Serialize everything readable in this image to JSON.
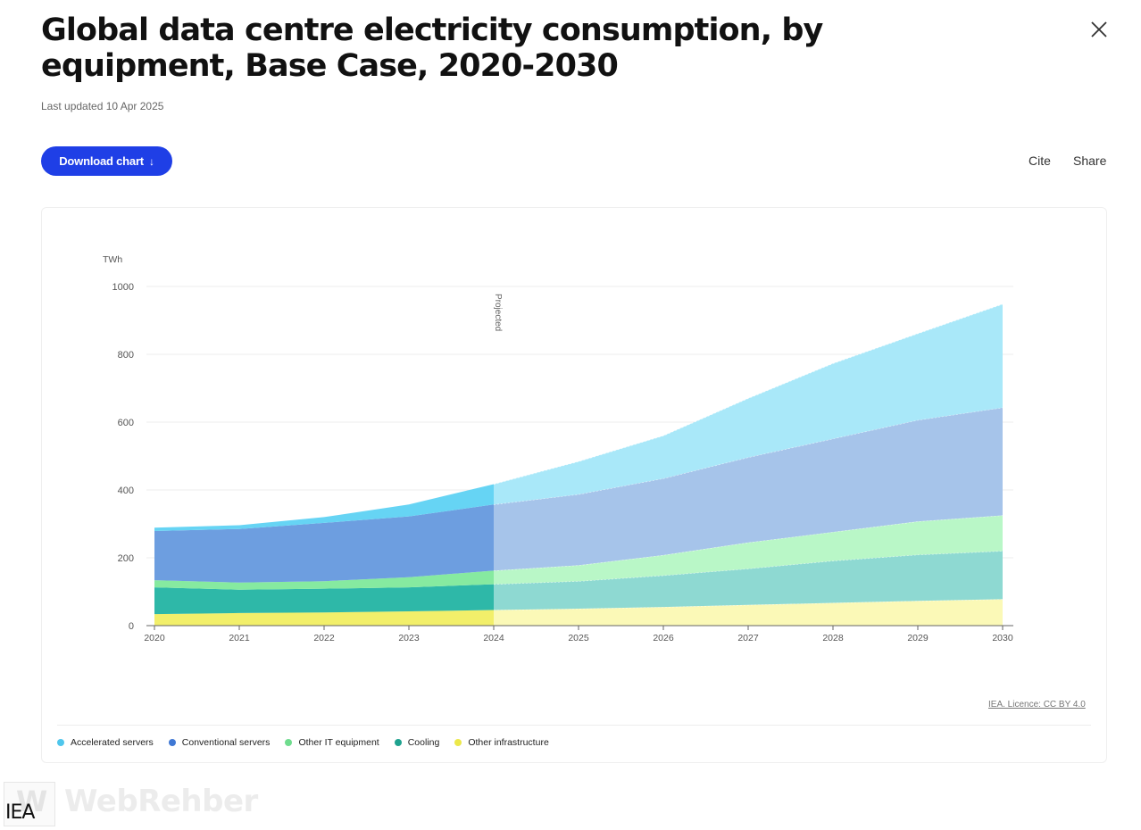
{
  "header": {
    "title": "Global data centre electricity consumption, by equipment, Base Case, 2020-2030",
    "updated": "Last updated 10 Apr 2025"
  },
  "toolbar": {
    "download_label": "Download chart",
    "download_arrow": "↓",
    "cite_label": "Cite",
    "share_label": "Share"
  },
  "icons": {
    "close": "close-icon",
    "download": "arrow-down-icon"
  },
  "footer": {
    "licence": "IEA. Licence: CC BY 4.0",
    "watermark_text": "WebRehber",
    "watermark_logo": "W",
    "iea_mark": "IEA"
  },
  "colors": {
    "brand_button": "#1f3fe6"
  },
  "chart_data": {
    "type": "area",
    "stacked": true,
    "ylabel": "TWh",
    "ylim": [
      0,
      1000
    ],
    "yticks": [
      0,
      200,
      400,
      600,
      800,
      1000
    ],
    "x": [
      2020,
      2021,
      2022,
      2023,
      2024,
      2025,
      2026,
      2027,
      2028,
      2029,
      2030
    ],
    "projection_start": 2024,
    "projection_label": "Projected",
    "grid": true,
    "legend_position": "bottom-left",
    "series": [
      {
        "name": "Other infrastructure",
        "color": "#f2ef6a",
        "projected_color": "#fbf9b7",
        "values": [
          34,
          37,
          39,
          42,
          46,
          50,
          55,
          61,
          67,
          73,
          78
        ]
      },
      {
        "name": "Cooling",
        "color": "#2eb8a8",
        "projected_color": "#8ed9d2",
        "values": [
          79,
          69,
          70,
          71,
          76,
          81,
          93,
          107,
          124,
          136,
          142
        ]
      },
      {
        "name": "Other IT equipment",
        "color": "#86eaa0",
        "projected_color": "#b9f7c7",
        "values": [
          21,
          21,
          22,
          30,
          40,
          47,
          60,
          77,
          85,
          98,
          105
        ]
      },
      {
        "name": "Conventional servers",
        "color": "#6d9ee0",
        "projected_color": "#a6c4ea",
        "values": [
          145,
          158,
          172,
          179,
          195,
          209,
          226,
          251,
          275,
          299,
          318
        ]
      },
      {
        "name": "Accelerated servers",
        "color": "#66d4f4",
        "projected_color": "#a9e8f9",
        "values": [
          10,
          11,
          17,
          35,
          60,
          97,
          126,
          174,
          222,
          255,
          305
        ]
      }
    ]
  }
}
